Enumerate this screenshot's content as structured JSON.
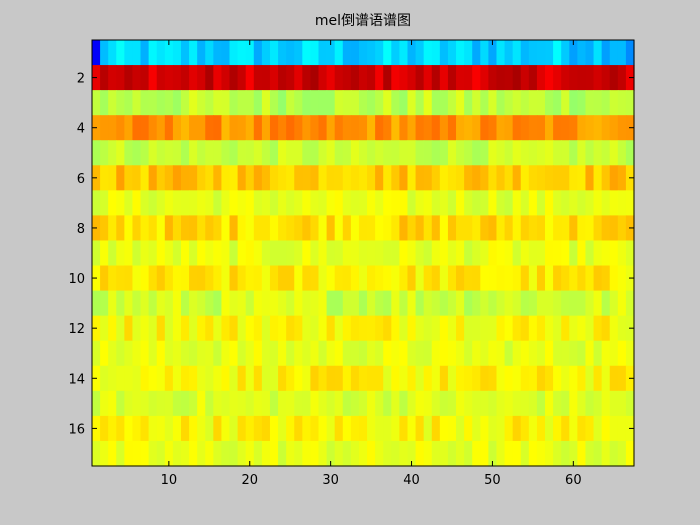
{
  "window": {
    "background": "#c8c8c8"
  },
  "chart_data": {
    "type": "heatmap",
    "title": "mel倒谱语谱图",
    "xlabel": "",
    "ylabel": "",
    "colormap": "jet",
    "xlim": [
      0.5,
      67.5
    ],
    "ylim": [
      0.5,
      17.5
    ],
    "y_direction": "reversed",
    "grid": false,
    "x_ticks": [
      10,
      20,
      30,
      40,
      50,
      60
    ],
    "y_ticks": [
      2,
      4,
      6,
      8,
      10,
      12,
      14,
      16
    ],
    "n_columns": 67,
    "n_rows": 17,
    "value_scale": "normalized 0-1 color index (jet)",
    "rows": [
      {
        "row": 1,
        "base": 0.33,
        "jitter": 0.05
      },
      {
        "row": 2,
        "base": 0.92,
        "jitter": 0.04
      },
      {
        "row": 3,
        "base": 0.56,
        "jitter": 0.04
      },
      {
        "row": 4,
        "base": 0.73,
        "jitter": 0.04
      },
      {
        "row": 5,
        "base": 0.57,
        "jitter": 0.03
      },
      {
        "row": 6,
        "base": 0.68,
        "jitter": 0.04
      },
      {
        "row": 7,
        "base": 0.6,
        "jitter": 0.03
      },
      {
        "row": 8,
        "base": 0.66,
        "jitter": 0.04
      },
      {
        "row": 9,
        "base": 0.6,
        "jitter": 0.03
      },
      {
        "row": 10,
        "base": 0.64,
        "jitter": 0.04
      },
      {
        "row": 11,
        "base": 0.58,
        "jitter": 0.04
      },
      {
        "row": 12,
        "base": 0.63,
        "jitter": 0.04
      },
      {
        "row": 13,
        "base": 0.6,
        "jitter": 0.03
      },
      {
        "row": 14,
        "base": 0.63,
        "jitter": 0.04
      },
      {
        "row": 15,
        "base": 0.59,
        "jitter": 0.03
      },
      {
        "row": 16,
        "base": 0.63,
        "jitter": 0.04
      },
      {
        "row": 17,
        "base": 0.6,
        "jitter": 0.03
      }
    ]
  }
}
